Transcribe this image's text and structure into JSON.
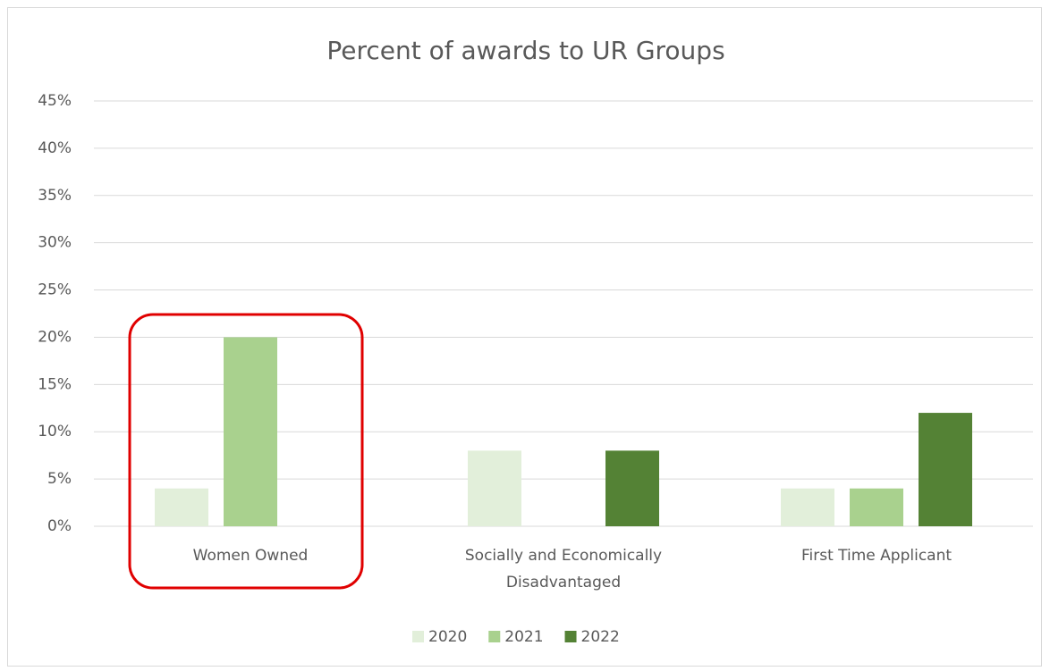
{
  "chart_data": {
    "type": "bar",
    "title": "Percent of awards to UR Groups",
    "categories": [
      "Women Owned",
      "Socially and Economically Disadvantaged",
      "First Time Applicant"
    ],
    "series": [
      {
        "name": "2020",
        "color": "#e2efda",
        "values": [
          4,
          8,
          4
        ]
      },
      {
        "name": "2021",
        "color": "#a9d18e",
        "values": [
          20,
          0,
          4
        ]
      },
      {
        "name": "2022",
        "color": "#548235",
        "values": [
          0,
          8,
          12
        ]
      }
    ],
    "ylim": [
      0,
      45
    ],
    "yticks": [
      {
        "value": 0,
        "label": "0%"
      },
      {
        "value": 5,
        "label": "5%"
      },
      {
        "value": 10,
        "label": "10%"
      },
      {
        "value": 15,
        "label": "15%"
      },
      {
        "value": 20,
        "label": "20%"
      },
      {
        "value": 25,
        "label": "25%"
      },
      {
        "value": 30,
        "label": "30%"
      },
      {
        "value": 35,
        "label": "35%"
      },
      {
        "value": 40,
        "label": "40%"
      },
      {
        "value": 45,
        "label": "45%"
      }
    ],
    "grid": true,
    "legend": "bottom"
  }
}
